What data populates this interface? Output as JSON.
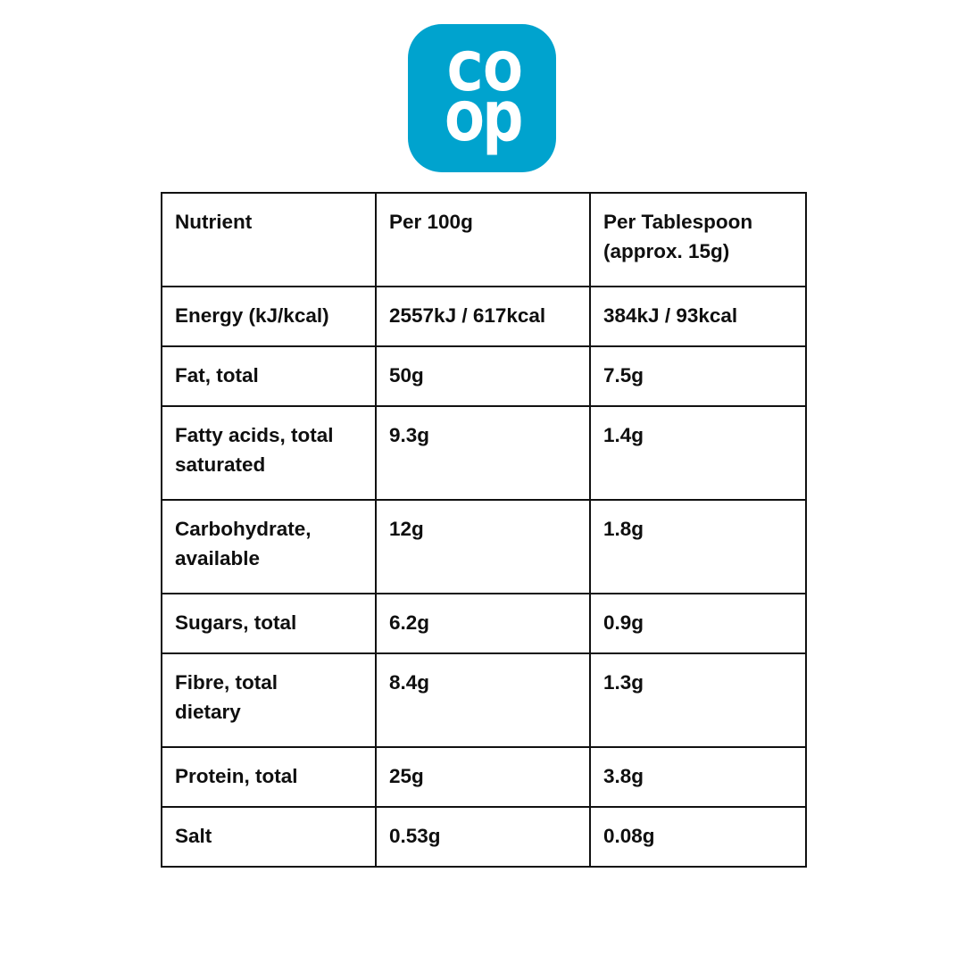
{
  "logo": {
    "brand": "Co-op",
    "line1": "co",
    "line2": "op",
    "bg_color": "#00A3CE",
    "text_color": "#ffffff"
  },
  "table": {
    "columns": [
      "Nutrient",
      "Per 100g",
      "Per Tablespoon\n(approx. 15g)"
    ],
    "rows": [
      [
        "Energy (kJ/kcal)",
        "2557kJ / 617kcal",
        "384kJ / 93kcal"
      ],
      [
        "Fat, total",
        "50g",
        "7.5g"
      ],
      [
        "Fatty acids, total\nsaturated",
        "9.3g",
        "1.4g"
      ],
      [
        "Carbohydrate,\navailable",
        "12g",
        "1.8g"
      ],
      [
        "Sugars, total",
        "6.2g",
        "0.9g"
      ],
      [
        "Fibre, total\ndietary",
        "8.4g",
        "1.3g"
      ],
      [
        "Protein, total",
        "25g",
        "3.8g"
      ],
      [
        "Salt",
        "0.53g",
        "0.08g"
      ]
    ]
  }
}
